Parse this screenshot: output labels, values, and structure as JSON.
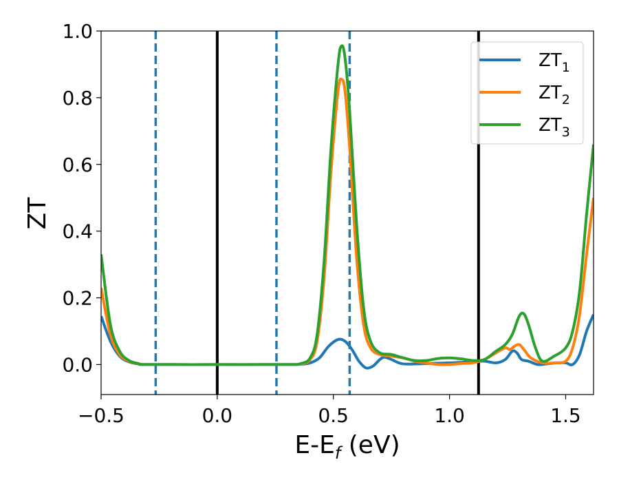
{
  "chart_data": {
    "type": "line",
    "xlabel": "E-E",
    "xlabel_sub": "f",
    "xlabel_unit": " (eV)",
    "ylabel": "ZT",
    "xlim": [
      -0.5,
      1.62
    ],
    "ylim": [
      -0.09,
      1.0
    ],
    "xticks": [
      -0.5,
      0.0,
      0.5,
      1.0,
      1.5
    ],
    "xtick_labels": [
      "−0.5",
      "0.0",
      "0.5",
      "1.0",
      "1.5"
    ],
    "yticks": [
      0.0,
      0.2,
      0.4,
      0.6,
      0.8,
      1.0
    ],
    "ytick_labels": [
      "0.0",
      "0.2",
      "0.4",
      "0.6",
      "0.8",
      "1.0"
    ],
    "grid": false,
    "legend_position": "top-right",
    "vlines": [
      {
        "x": -0.265,
        "style": "dashed",
        "color": "#1f77b4"
      },
      {
        "x": 0.0,
        "style": "solid",
        "color": "#000000"
      },
      {
        "x": 0.255,
        "style": "dashed",
        "color": "#1f77b4"
      },
      {
        "x": 0.57,
        "style": "dashed",
        "color": "#1f77b4"
      },
      {
        "x": 1.125,
        "style": "solid",
        "color": "#000000"
      }
    ],
    "series": [
      {
        "name": "ZT",
        "name_sub": "1",
        "color": "#1f77b4",
        "points": [
          [
            -0.5,
            0.145
          ],
          [
            -0.46,
            0.07
          ],
          [
            -0.42,
            0.025
          ],
          [
            -0.38,
            0.008
          ],
          [
            -0.34,
            0.002
          ],
          [
            -0.3,
            0.0
          ],
          [
            0.0,
            0.0
          ],
          [
            0.3,
            0.0
          ],
          [
            0.36,
            0.001
          ],
          [
            0.4,
            0.005
          ],
          [
            0.44,
            0.02
          ],
          [
            0.48,
            0.055
          ],
          [
            0.52,
            0.075
          ],
          [
            0.55,
            0.07
          ],
          [
            0.58,
            0.045
          ],
          [
            0.61,
            0.01
          ],
          [
            0.64,
            -0.01
          ],
          [
            0.67,
            -0.005
          ],
          [
            0.7,
            0.015
          ],
          [
            0.72,
            0.022
          ],
          [
            0.75,
            0.015
          ],
          [
            0.8,
            0.002
          ],
          [
            0.9,
            0.003
          ],
          [
            1.0,
            0.005
          ],
          [
            1.1,
            0.008
          ],
          [
            1.15,
            0.01
          ],
          [
            1.2,
            0.005
          ],
          [
            1.24,
            0.015
          ],
          [
            1.27,
            0.04
          ],
          [
            1.29,
            0.035
          ],
          [
            1.31,
            0.015
          ],
          [
            1.34,
            0.01
          ],
          [
            1.38,
            0.0
          ],
          [
            1.42,
            0.002
          ],
          [
            1.46,
            0.005
          ],
          [
            1.5,
            0.005
          ],
          [
            1.53,
            0.0
          ],
          [
            1.56,
            0.03
          ],
          [
            1.59,
            0.1
          ],
          [
            1.62,
            0.15
          ]
        ]
      },
      {
        "name": "ZT",
        "name_sub": "2",
        "color": "#ff7f0e",
        "points": [
          [
            -0.5,
            0.23
          ],
          [
            -0.46,
            0.09
          ],
          [
            -0.42,
            0.03
          ],
          [
            -0.38,
            0.01
          ],
          [
            -0.34,
            0.003
          ],
          [
            -0.3,
            0.0
          ],
          [
            0.0,
            0.0
          ],
          [
            0.3,
            0.0
          ],
          [
            0.36,
            0.002
          ],
          [
            0.4,
            0.015
          ],
          [
            0.43,
            0.07
          ],
          [
            0.46,
            0.26
          ],
          [
            0.49,
            0.58
          ],
          [
            0.52,
            0.82
          ],
          [
            0.535,
            0.855
          ],
          [
            0.55,
            0.82
          ],
          [
            0.57,
            0.65
          ],
          [
            0.6,
            0.32
          ],
          [
            0.63,
            0.12
          ],
          [
            0.66,
            0.05
          ],
          [
            0.7,
            0.03
          ],
          [
            0.75,
            0.025
          ],
          [
            0.8,
            0.02
          ],
          [
            0.85,
            0.01
          ],
          [
            0.9,
            0.005
          ],
          [
            0.95,
            0.0
          ],
          [
            1.0,
            0.0
          ],
          [
            1.05,
            0.003
          ],
          [
            1.1,
            0.005
          ],
          [
            1.15,
            0.015
          ],
          [
            1.2,
            0.035
          ],
          [
            1.24,
            0.05
          ],
          [
            1.26,
            0.045
          ],
          [
            1.28,
            0.055
          ],
          [
            1.3,
            0.06
          ],
          [
            1.32,
            0.045
          ],
          [
            1.35,
            0.02
          ],
          [
            1.4,
            0.005
          ],
          [
            1.45,
            0.005
          ],
          [
            1.5,
            0.01
          ],
          [
            1.53,
            0.05
          ],
          [
            1.56,
            0.15
          ],
          [
            1.59,
            0.33
          ],
          [
            1.62,
            0.5
          ]
        ]
      },
      {
        "name": "ZT",
        "name_sub": "3",
        "color": "#2ca02c",
        "points": [
          [
            -0.5,
            0.33
          ],
          [
            -0.46,
            0.12
          ],
          [
            -0.42,
            0.04
          ],
          [
            -0.38,
            0.012
          ],
          [
            -0.34,
            0.003
          ],
          [
            -0.3,
            0.0
          ],
          [
            0.0,
            0.0
          ],
          [
            0.3,
            0.0
          ],
          [
            0.36,
            0.003
          ],
          [
            0.4,
            0.02
          ],
          [
            0.43,
            0.09
          ],
          [
            0.46,
            0.31
          ],
          [
            0.49,
            0.65
          ],
          [
            0.52,
            0.9
          ],
          [
            0.535,
            0.955
          ],
          [
            0.55,
            0.92
          ],
          [
            0.57,
            0.76
          ],
          [
            0.6,
            0.42
          ],
          [
            0.63,
            0.17
          ],
          [
            0.66,
            0.07
          ],
          [
            0.7,
            0.035
          ],
          [
            0.75,
            0.03
          ],
          [
            0.8,
            0.02
          ],
          [
            0.85,
            0.012
          ],
          [
            0.9,
            0.012
          ],
          [
            0.95,
            0.018
          ],
          [
            1.0,
            0.02
          ],
          [
            1.05,
            0.017
          ],
          [
            1.1,
            0.012
          ],
          [
            1.15,
            0.015
          ],
          [
            1.2,
            0.04
          ],
          [
            1.24,
            0.06
          ],
          [
            1.27,
            0.09
          ],
          [
            1.3,
            0.145
          ],
          [
            1.32,
            0.152
          ],
          [
            1.34,
            0.12
          ],
          [
            1.37,
            0.05
          ],
          [
            1.4,
            0.01
          ],
          [
            1.45,
            0.025
          ],
          [
            1.5,
            0.05
          ],
          [
            1.53,
            0.1
          ],
          [
            1.56,
            0.22
          ],
          [
            1.59,
            0.45
          ],
          [
            1.62,
            0.66
          ]
        ]
      }
    ]
  }
}
